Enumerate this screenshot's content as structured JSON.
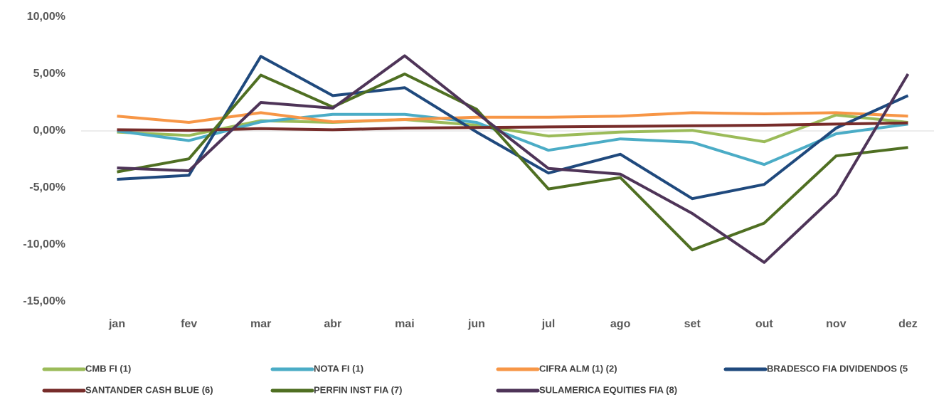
{
  "chart_data": {
    "type": "line",
    "categories": [
      "jan",
      "fev",
      "mar",
      "abr",
      "mai",
      "jun",
      "jul",
      "ago",
      "set",
      "out",
      "nov",
      "dez"
    ],
    "ylim": [
      -15,
      10
    ],
    "yticks": [
      {
        "value": -15,
        "label": "-15,00%"
      },
      {
        "value": -10,
        "label": "-10,00%"
      },
      {
        "value": -5,
        "label": "-5,00%"
      },
      {
        "value": 0,
        "label": "0,00%"
      },
      {
        "value": 5,
        "label": "5,00%"
      },
      {
        "value": 10,
        "label": "10,00%"
      }
    ],
    "series": [
      {
        "name": "CMB FI (1)",
        "color": "#9bbb59",
        "values": [
          -0.1,
          -0.4,
          0.9,
          0.75,
          1.0,
          0.5,
          -0.45,
          -0.1,
          0.05,
          -0.95,
          1.4,
          0.75
        ]
      },
      {
        "name": "NOTA FI (1)",
        "color": "#4bacc6",
        "values": [
          0.0,
          -0.85,
          0.8,
          1.45,
          1.45,
          0.75,
          -1.7,
          -0.7,
          -1.0,
          -2.95,
          -0.25,
          0.6
        ]
      },
      {
        "name": "CIFRA ALM (1) (2)",
        "color": "#f79646",
        "values": [
          1.3,
          0.75,
          1.6,
          0.8,
          1.0,
          1.2,
          1.2,
          1.3,
          1.6,
          1.5,
          1.6,
          1.3
        ]
      },
      {
        "name": "BRADESCO FIA DIVIDENDOS (5",
        "color": "#1f497d",
        "values": [
          -4.25,
          -3.9,
          6.55,
          3.1,
          3.8,
          -0.1,
          -3.7,
          -2.05,
          -5.95,
          -4.7,
          0.25,
          3.1
        ]
      },
      {
        "name": "SANTANDER CASH BLUE (6)",
        "color": "#772c2a",
        "values": [
          0.1,
          0.05,
          0.2,
          0.1,
          0.25,
          0.3,
          0.35,
          0.4,
          0.45,
          0.5,
          0.6,
          0.7
        ]
      },
      {
        "name": "PERFIN INST FIA (7)",
        "color": "#4f6f22",
        "values": [
          -3.6,
          -2.45,
          4.9,
          2.1,
          5.0,
          1.9,
          -5.1,
          -4.1,
          -10.45,
          -8.1,
          -2.2,
          -1.45
        ]
      },
      {
        "name": "SULAMERICA EQUITIES FIA (8)",
        "color": "#4e3458",
        "values": [
          -3.25,
          -3.5,
          2.5,
          2.0,
          6.6,
          1.6,
          -3.3,
          -3.8,
          -7.25,
          -11.55,
          -5.6,
          5.0
        ]
      }
    ]
  }
}
